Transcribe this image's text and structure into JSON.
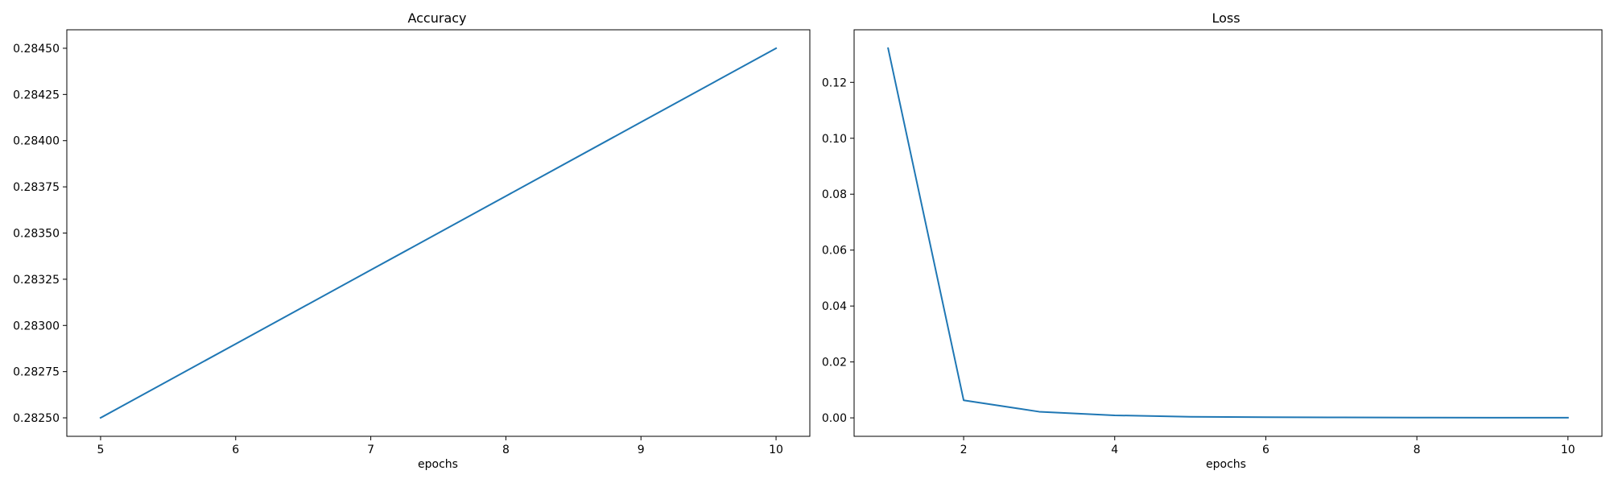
{
  "chart_data": [
    {
      "type": "line",
      "title": "Accuracy",
      "xlabel": "epochs",
      "ylabel": "",
      "x": [
        5,
        6,
        7,
        8,
        9,
        10
      ],
      "series": [
        {
          "values": [
            0.2825,
            0.2829,
            0.2833,
            0.2837,
            0.2841,
            0.2845
          ]
        }
      ],
      "xlim": [
        4.75,
        10.25
      ],
      "ylim": [
        0.2824,
        0.2846
      ],
      "xticks": [
        5,
        6,
        7,
        8,
        9,
        10
      ],
      "yticks": [
        0.2825,
        0.28275,
        0.283,
        0.28325,
        0.2835,
        0.28375,
        0.284,
        0.28425,
        0.2845
      ],
      "ytick_labels": [
        "0.28250",
        "0.28275",
        "0.28300",
        "0.28325",
        "0.28350",
        "0.28375",
        "0.28400",
        "0.28425",
        "0.28450"
      ],
      "grid": false,
      "line_color": "#1f77b4"
    },
    {
      "type": "line",
      "title": "Loss",
      "xlabel": "epochs",
      "ylabel": "",
      "x": [
        1,
        2,
        3,
        4,
        5,
        6,
        7,
        8,
        9,
        10
      ],
      "series": [
        {
          "values": [
            0.1322,
            0.0063,
            0.0022,
            0.0009,
            0.0004,
            0.00025,
            0.00015,
            0.0001,
            7e-05,
            5e-05
          ]
        }
      ],
      "xlim": [
        0.55,
        10.45
      ],
      "ylim": [
        -0.0066,
        0.1388
      ],
      "xticks": [
        2,
        4,
        6,
        8,
        10
      ],
      "yticks": [
        0.0,
        0.02,
        0.04,
        0.06,
        0.08,
        0.1,
        0.12
      ],
      "ytick_labels": [
        "0.00",
        "0.02",
        "0.04",
        "0.06",
        "0.08",
        "0.10",
        "0.12"
      ],
      "grid": false,
      "line_color": "#1f77b4"
    }
  ]
}
